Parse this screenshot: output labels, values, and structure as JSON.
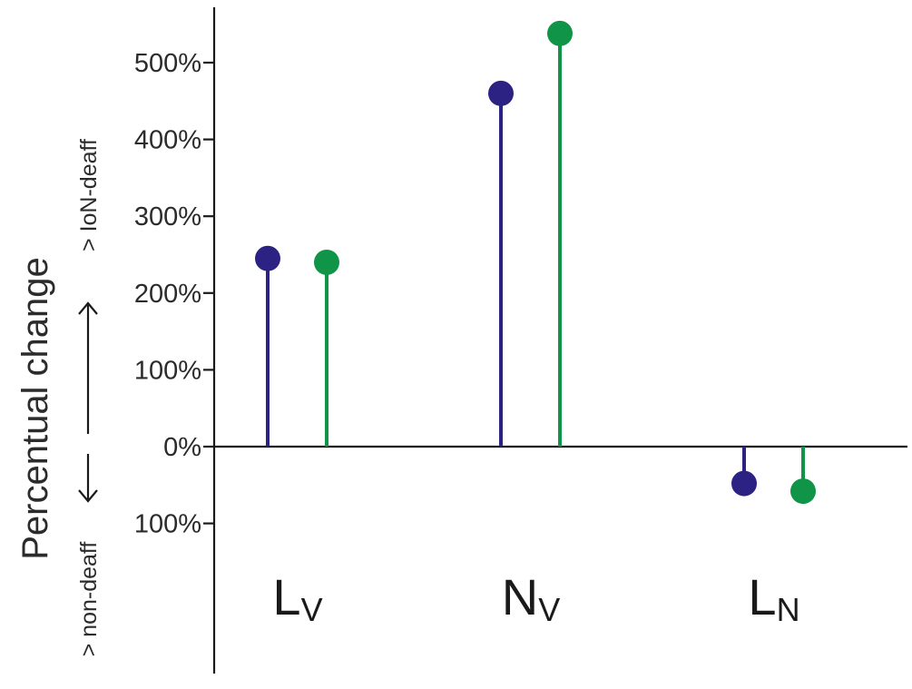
{
  "chart_data": {
    "type": "lollipop",
    "ylabel": "Percentual change",
    "direction_up_label": "> IoN-deaff",
    "direction_down_label": "> non-deaff",
    "yticks": [
      {
        "value": 500,
        "label": "500%"
      },
      {
        "value": 400,
        "label": "400%"
      },
      {
        "value": 300,
        "label": "300%"
      },
      {
        "value": 200,
        "label": "200%"
      },
      {
        "value": 100,
        "label": "100%"
      },
      {
        "value": 0,
        "label": "0%"
      },
      {
        "value": -100,
        "label": "100%"
      }
    ],
    "ylim": [
      -170,
      580
    ],
    "categories": [
      {
        "main": "L",
        "sub": "V"
      },
      {
        "main": "N",
        "sub": "V"
      },
      {
        "main": "L",
        "sub": "N"
      }
    ],
    "series": [
      {
        "color": "#2b2283",
        "values": [
          245,
          460,
          -48
        ]
      },
      {
        "color": "#109447",
        "values": [
          240,
          538,
          -58
        ]
      }
    ]
  }
}
